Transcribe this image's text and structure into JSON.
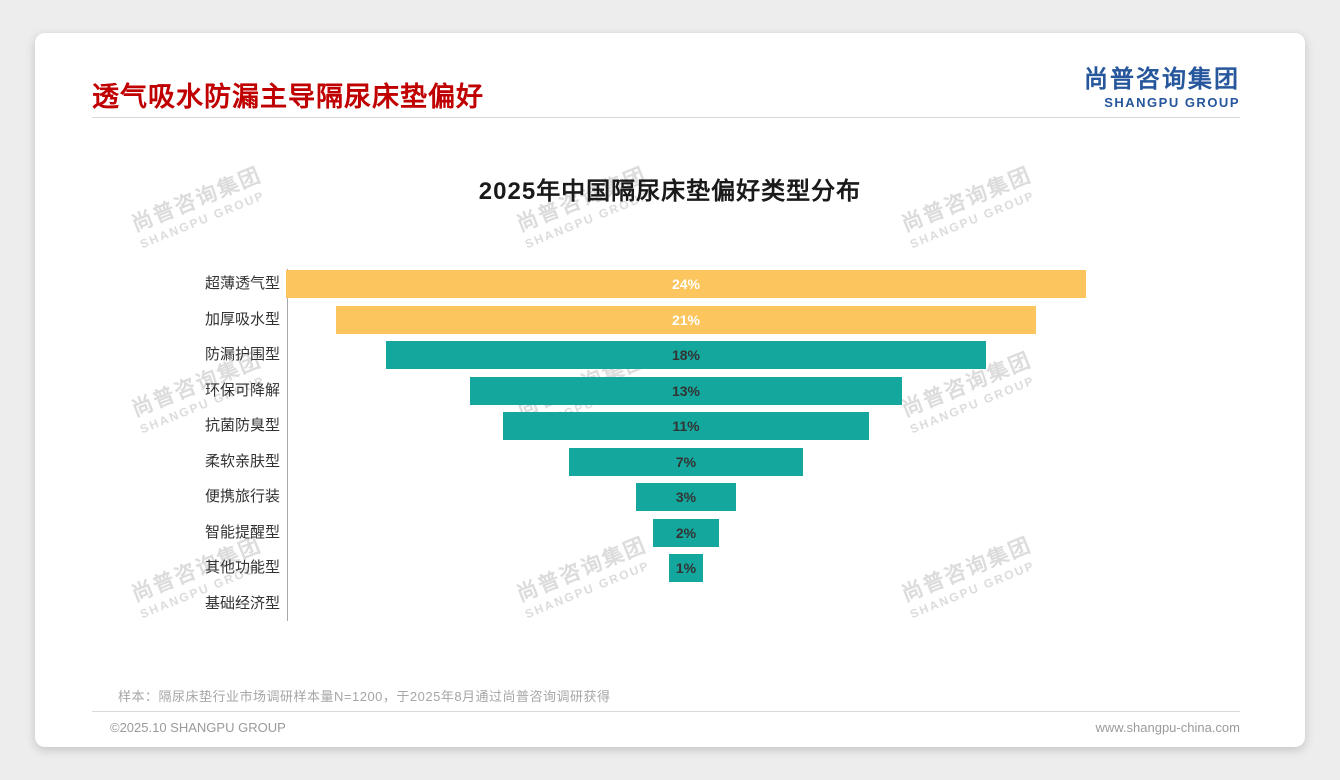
{
  "page": {
    "title": "透气吸水防漏主导隔尿床垫偏好",
    "title_color": "#C00000",
    "logo": {
      "cn": "尚普咨询集团",
      "en": "SHANGPU GROUP",
      "color": "#26569B"
    },
    "watermark": {
      "cn": "尚普咨询集团",
      "en": "SHANGPU GROUP"
    },
    "note": "样本：隔尿床垫行业市场调研样本量N=1200，于2025年8月通过尚普咨询调研获得",
    "footer": {
      "left": "©2025.10 SHANGPU GROUP",
      "right": "www.shangpu-china.com"
    }
  },
  "chart_data": {
    "type": "bar",
    "variant": "horizontal-centered-funnel",
    "title": "2025年中国隔尿床垫偏好类型分布",
    "categories": [
      "超薄透气型",
      "加厚吸水型",
      "防漏护围型",
      "环保可降解",
      "抗菌防臭型",
      "柔软亲肤型",
      "便携旅行装",
      "智能提醒型",
      "其他功能型",
      "基础经济型"
    ],
    "values": [
      24,
      21,
      18,
      13,
      11,
      7,
      3,
      2,
      1,
      0
    ],
    "value_labels": [
      "24%",
      "21%",
      "18%",
      "13%",
      "11%",
      "7%",
      "3%",
      "2%",
      "1%",
      ""
    ],
    "unit": "%",
    "xlim": [
      0,
      24
    ],
    "grid": false,
    "bar_colors": [
      "#FDC55E",
      "#FDC55E",
      "#14A79D",
      "#14A79D",
      "#14A79D",
      "#14A79D",
      "#14A79D",
      "#14A79D",
      "#14A79D",
      "#14A79D"
    ],
    "value_label_colors": [
      "#FFFFFF",
      "#FFFFFF",
      "#333333",
      "#333333",
      "#333333",
      "#333333",
      "#333333",
      "#333333",
      "#333333",
      "#333333"
    ]
  }
}
